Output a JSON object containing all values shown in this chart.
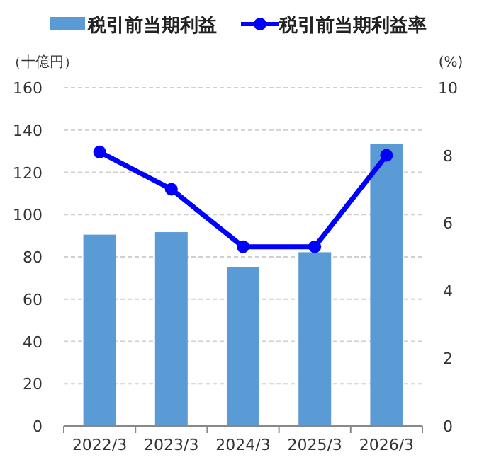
{
  "chart_data": {
    "type": "bar",
    "categories": [
      "2022/3",
      "2023/3",
      "2024/3",
      "2025/3",
      "2026/3"
    ],
    "series": [
      {
        "name": "税引前当期利益",
        "color": "#5b9bd5",
        "values": [
          90.5,
          91.7,
          75,
          82.2,
          133.5
        ]
      },
      {
        "name": "税引前当期利益率",
        "type": "line",
        "axis": "y2",
        "color": "#0000ff",
        "marker": "circle",
        "values": [
          8.1,
          7.0,
          5.3,
          5.3,
          8.0
        ]
      }
    ],
    "ylabel": "（十億円）",
    "y2label": "(%)",
    "ylim": [
      0,
      160
    ],
    "yticks": [
      0,
      20,
      40,
      60,
      80,
      100,
      120,
      140,
      160
    ],
    "y2lim": [
      0,
      10
    ],
    "y2ticks": [
      0,
      2,
      4,
      6,
      8,
      10
    ],
    "grid": "y",
    "legend": "top"
  }
}
